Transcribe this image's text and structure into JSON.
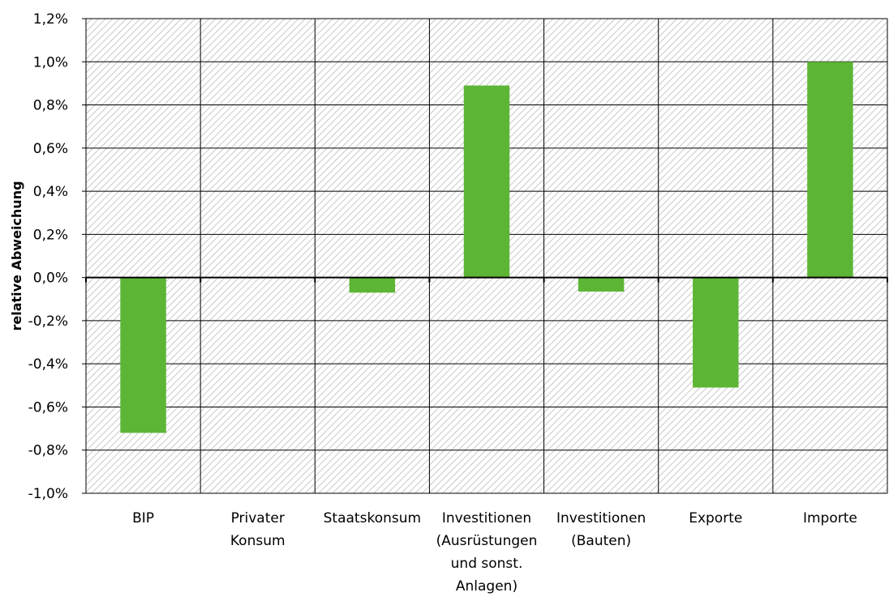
{
  "chart_data": {
    "type": "bar",
    "title": "",
    "xlabel": "",
    "ylabel": "relative Abweichung",
    "ylim": [
      -1.0,
      1.2
    ],
    "yticks": [
      -1.0,
      -0.8,
      -0.6,
      -0.4,
      -0.2,
      0.0,
      0.2,
      0.4,
      0.6,
      0.8,
      1.0,
      1.2
    ],
    "ytick_labels": [
      "-1,0%",
      "-0,8%",
      "-0,6%",
      "-0,4%",
      "-0,2%",
      "0,0%",
      "0,2%",
      "0,4%",
      "0,6%",
      "0,8%",
      "1,0%",
      "1,2%"
    ],
    "categories": [
      [
        "BIP"
      ],
      [
        "Privater",
        "Konsum"
      ],
      [
        "Staatskonsum"
      ],
      [
        "Investitionen",
        "(Ausrüstungen",
        "und sonst.",
        "Anlagen)"
      ],
      [
        "Investitionen",
        "(Bauten)"
      ],
      [
        "Exporte"
      ],
      [
        "Importe"
      ]
    ],
    "values": [
      -0.72,
      0.0,
      -0.07,
      0.89,
      -0.065,
      -0.51,
      1.0
    ],
    "unit": "%",
    "bar_color": "#5db535",
    "grid": true,
    "background": "hatched",
    "legend": "none"
  }
}
